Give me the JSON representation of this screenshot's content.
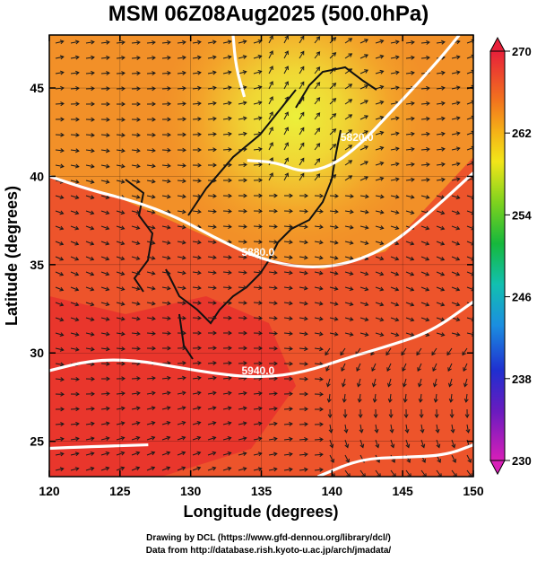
{
  "title": "MSM 06Z08Aug2025 (500.0hPa)",
  "axes": {
    "xlabel": "Longitude (degrees)",
    "ylabel": "Latitude  (degrees)",
    "xlim": [
      120,
      150
    ],
    "ylim": [
      23,
      48
    ],
    "xticks": [
      120,
      125,
      130,
      135,
      140,
      145,
      150
    ],
    "yticks": [
      25,
      30,
      35,
      40,
      45
    ]
  },
  "colorbar": {
    "min": 230,
    "max": 270,
    "ticks": [
      270,
      262,
      254,
      246,
      238,
      230
    ]
  },
  "contours": [
    {
      "label": "5880.0",
      "points": [
        [
          120,
          40
        ],
        [
          123,
          39.2
        ],
        [
          126,
          38.6
        ],
        [
          129,
          37.7
        ],
        [
          132,
          36.4
        ],
        [
          135,
          35.3
        ],
        [
          138,
          34.8
        ],
        [
          141,
          35.0
        ],
        [
          144,
          36.0
        ],
        [
          147,
          38.0
        ],
        [
          150,
          40.2
        ]
      ]
    },
    {
      "label": "5940.0",
      "points": [
        [
          120,
          29
        ],
        [
          123,
          29.6
        ],
        [
          126,
          29.6
        ],
        [
          129,
          29.2
        ],
        [
          132,
          28.8
        ],
        [
          135,
          28.6
        ],
        [
          138,
          28.9
        ],
        [
          141,
          29.7
        ],
        [
          144,
          30.4
        ],
        [
          147,
          31.2
        ],
        [
          150,
          32.9
        ]
      ]
    },
    {
      "label": "5820.0",
      "points": [
        [
          134,
          40.9
        ],
        [
          136,
          40.8
        ],
        [
          138,
          40.2
        ],
        [
          140,
          40.6
        ],
        [
          142,
          41.8
        ],
        [
          144,
          43.5
        ],
        [
          146,
          45.2
        ],
        [
          148,
          47
        ],
        [
          149,
          48
        ]
      ]
    },
    {
      "label": "",
      "points": [
        [
          133,
          48
        ],
        [
          133.2,
          46.2
        ],
        [
          133.8,
          44.5
        ]
      ]
    },
    {
      "label": "",
      "points": [
        [
          120,
          24.6
        ],
        [
          123,
          24.7
        ],
        [
          127,
          24.8
        ]
      ]
    },
    {
      "label": "",
      "points": [
        [
          139,
          23
        ],
        [
          142,
          24
        ],
        [
          145,
          24.1
        ],
        [
          148,
          24.2
        ],
        [
          150,
          24.8
        ]
      ]
    }
  ],
  "credits": {
    "line1": "Drawing by DCL (https://www.gfd-dennou.org/library/dcl/)",
    "line2": "Data from http://database.rish.kyoto-u.ac.jp/arch/jmadata/"
  }
}
